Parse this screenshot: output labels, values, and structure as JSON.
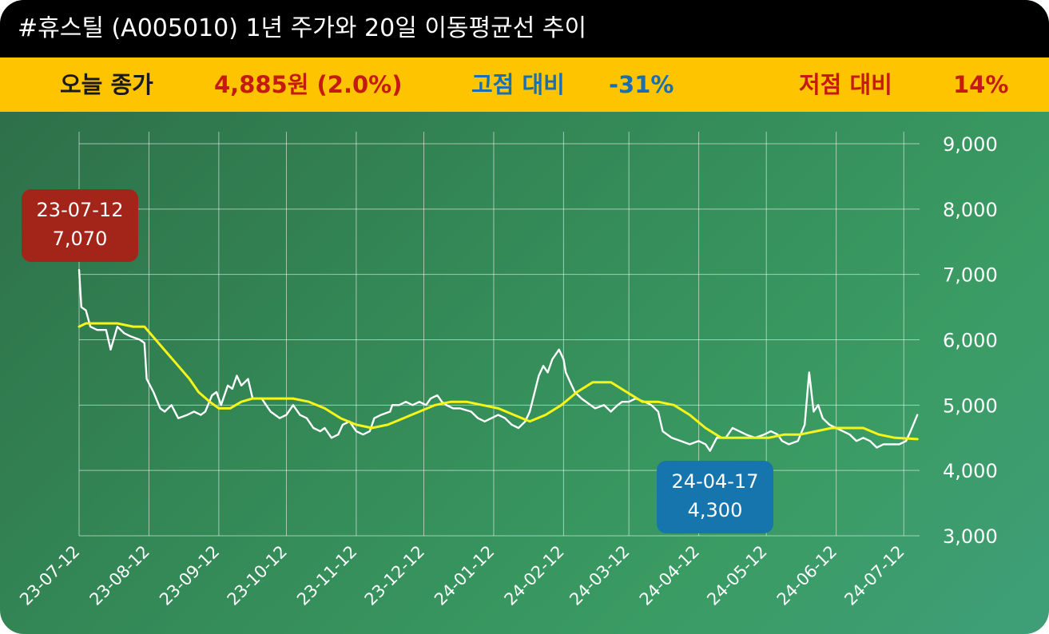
{
  "header": {
    "title": "#휴스틸 (A005010) 1년 주가와 20일 이동평균선 추이"
  },
  "stats": {
    "today_label": "오늘 종가",
    "today_value": "4,885원 (2.0%)",
    "high_label": "고점 대비",
    "high_value": "-31%",
    "low_label": "저점 대비",
    "low_value": "14%"
  },
  "callouts": {
    "high": {
      "date": "23-07-12",
      "value": "7,070"
    },
    "low": {
      "date": "24-04-17",
      "value": "4,300"
    }
  },
  "colors": {
    "title_bg": "#000000",
    "stat_bg": "#ffc400",
    "price_line": "#ffffff",
    "ma_line": "#f5f51a",
    "high_callout": "#a32418",
    "low_callout": "#1775ad"
  },
  "chart_data": {
    "type": "line",
    "title": "",
    "xlabel": "",
    "ylabel": "",
    "ylim": [
      3000,
      9000
    ],
    "y_ticks": [
      3000,
      4000,
      5000,
      6000,
      7000,
      8000,
      9000
    ],
    "y_tick_labels": [
      "3,000",
      "4,000",
      "5,000",
      "6,000",
      "7,000",
      "8,000",
      "9,000"
    ],
    "x_ticks": [
      "23-07-12",
      "23-08-12",
      "23-09-12",
      "23-10-12",
      "23-11-12",
      "23-12-12",
      "24-01-12",
      "24-02-12",
      "24-03-12",
      "24-04-12",
      "24-05-12",
      "24-06-12",
      "24-07-12"
    ],
    "grid": true,
    "x_start": "2023-07-12",
    "x_end": "2024-07-19",
    "series": [
      {
        "name": "",
        "role": "price",
        "points": [
          [
            "2023-07-12",
            7070
          ],
          [
            "2023-07-13",
            6500
          ],
          [
            "2023-07-15",
            6450
          ],
          [
            "2023-07-17",
            6200
          ],
          [
            "2023-07-20",
            6150
          ],
          [
            "2023-07-24",
            6150
          ],
          [
            "2023-07-26",
            5850
          ],
          [
            "2023-07-29",
            6200
          ],
          [
            "2023-08-01",
            6100
          ],
          [
            "2023-08-04",
            6050
          ],
          [
            "2023-08-08",
            6000
          ],
          [
            "2023-08-10",
            5950
          ],
          [
            "2023-08-11",
            5400
          ],
          [
            "2023-08-14",
            5200
          ],
          [
            "2023-08-17",
            4950
          ],
          [
            "2023-08-19",
            4900
          ],
          [
            "2023-08-22",
            5000
          ],
          [
            "2023-08-25",
            4800
          ],
          [
            "2023-08-29",
            4850
          ],
          [
            "2023-09-01",
            4900
          ],
          [
            "2023-09-04",
            4850
          ],
          [
            "2023-09-06",
            4900
          ],
          [
            "2023-09-09",
            5150
          ],
          [
            "2023-09-11",
            5200
          ],
          [
            "2023-09-13",
            5000
          ],
          [
            "2023-09-16",
            5300
          ],
          [
            "2023-09-18",
            5250
          ],
          [
            "2023-09-20",
            5450
          ],
          [
            "2023-09-22",
            5300
          ],
          [
            "2023-09-25",
            5400
          ],
          [
            "2023-09-27",
            5100
          ],
          [
            "2023-10-01",
            5100
          ],
          [
            "2023-10-05",
            4900
          ],
          [
            "2023-10-09",
            4800
          ],
          [
            "2023-10-12",
            4850
          ],
          [
            "2023-10-15",
            5000
          ],
          [
            "2023-10-18",
            4850
          ],
          [
            "2023-10-21",
            4800
          ],
          [
            "2023-10-24",
            4650
          ],
          [
            "2023-10-27",
            4600
          ],
          [
            "2023-10-29",
            4650
          ],
          [
            "2023-11-01",
            4500
          ],
          [
            "2023-11-04",
            4550
          ],
          [
            "2023-11-06",
            4700
          ],
          [
            "2023-11-09",
            4750
          ],
          [
            "2023-11-12",
            4600
          ],
          [
            "2023-11-15",
            4550
          ],
          [
            "2023-11-18",
            4600
          ],
          [
            "2023-11-20",
            4800
          ],
          [
            "2023-11-23",
            4850
          ],
          [
            "2023-11-27",
            4900
          ],
          [
            "2023-11-28",
            5000
          ],
          [
            "2023-12-01",
            5000
          ],
          [
            "2023-12-04",
            5050
          ],
          [
            "2023-12-07",
            5000
          ],
          [
            "2023-12-10",
            5050
          ],
          [
            "2023-12-13",
            5000
          ],
          [
            "2023-12-15",
            5100
          ],
          [
            "2023-12-18",
            5150
          ],
          [
            "2023-12-20",
            5050
          ],
          [
            "2023-12-22",
            5000
          ],
          [
            "2023-12-25",
            4950
          ],
          [
            "2023-12-28",
            4950
          ],
          [
            "2024-01-02",
            4900
          ],
          [
            "2024-01-05",
            4800
          ],
          [
            "2024-01-08",
            4750
          ],
          [
            "2024-01-11",
            4800
          ],
          [
            "2024-01-14",
            4850
          ],
          [
            "2024-01-17",
            4800
          ],
          [
            "2024-01-20",
            4700
          ],
          [
            "2024-01-23",
            4650
          ],
          [
            "2024-01-26",
            4750
          ],
          [
            "2024-01-28",
            4900
          ],
          [
            "2024-02-01",
            5450
          ],
          [
            "2024-02-03",
            5600
          ],
          [
            "2024-02-05",
            5500
          ],
          [
            "2024-02-07",
            5700
          ],
          [
            "2024-02-10",
            5850
          ],
          [
            "2024-02-12",
            5700
          ],
          [
            "2024-02-13",
            5500
          ],
          [
            "2024-02-15",
            5350
          ],
          [
            "2024-02-17",
            5200
          ],
          [
            "2024-02-20",
            5100
          ],
          [
            "2024-02-24",
            5000
          ],
          [
            "2024-02-26",
            4950
          ],
          [
            "2024-03-01",
            5000
          ],
          [
            "2024-03-04",
            4900
          ],
          [
            "2024-03-07",
            5000
          ],
          [
            "2024-03-09",
            5050
          ],
          [
            "2024-03-12",
            5050
          ],
          [
            "2024-03-15",
            5100
          ],
          [
            "2024-03-19",
            5050
          ],
          [
            "2024-03-22",
            5000
          ],
          [
            "2024-03-25",
            4900
          ],
          [
            "2024-03-27",
            4600
          ],
          [
            "2024-03-31",
            4500
          ],
          [
            "2024-04-04",
            4450
          ],
          [
            "2024-04-08",
            4400
          ],
          [
            "2024-04-12",
            4450
          ],
          [
            "2024-04-15",
            4400
          ],
          [
            "2024-04-17",
            4300
          ],
          [
            "2024-04-20",
            4500
          ],
          [
            "2024-04-24",
            4500
          ],
          [
            "2024-04-27",
            4650
          ],
          [
            "2024-04-30",
            4600
          ],
          [
            "2024-05-03",
            4550
          ],
          [
            "2024-05-07",
            4500
          ],
          [
            "2024-05-11",
            4550
          ],
          [
            "2024-05-14",
            4600
          ],
          [
            "2024-05-17",
            4550
          ],
          [
            "2024-05-19",
            4450
          ],
          [
            "2024-05-22",
            4400
          ],
          [
            "2024-05-26",
            4450
          ],
          [
            "2024-05-29",
            4700
          ],
          [
            "2024-05-31",
            5500
          ],
          [
            "2024-06-02",
            4900
          ],
          [
            "2024-06-04",
            5000
          ],
          [
            "2024-06-06",
            4800
          ],
          [
            "2024-06-09",
            4700
          ],
          [
            "2024-06-12",
            4650
          ],
          [
            "2024-06-15",
            4600
          ],
          [
            "2024-06-18",
            4550
          ],
          [
            "2024-06-21",
            4450
          ],
          [
            "2024-06-24",
            4500
          ],
          [
            "2024-06-27",
            4450
          ],
          [
            "2024-06-30",
            4350
          ],
          [
            "2024-07-03",
            4400
          ],
          [
            "2024-07-07",
            4400
          ],
          [
            "2024-07-10",
            4400
          ],
          [
            "2024-07-13",
            4450
          ],
          [
            "2024-07-15",
            4600
          ],
          [
            "2024-07-18",
            4850
          ]
        ]
      },
      {
        "name": "",
        "role": "ma20",
        "points": [
          [
            "2023-07-12",
            6200
          ],
          [
            "2023-07-15",
            6250
          ],
          [
            "2023-07-22",
            6250
          ],
          [
            "2023-07-29",
            6250
          ],
          [
            "2023-08-05",
            6200
          ],
          [
            "2023-08-10",
            6200
          ],
          [
            "2023-08-15",
            6000
          ],
          [
            "2023-08-20",
            5800
          ],
          [
            "2023-08-25",
            5600
          ],
          [
            "2023-08-30",
            5400
          ],
          [
            "2023-09-03",
            5200
          ],
          [
            "2023-09-08",
            5050
          ],
          [
            "2023-09-12",
            4950
          ],
          [
            "2023-09-17",
            4950
          ],
          [
            "2023-09-22",
            5050
          ],
          [
            "2023-09-27",
            5100
          ],
          [
            "2023-10-05",
            5100
          ],
          [
            "2023-10-15",
            5100
          ],
          [
            "2023-10-22",
            5050
          ],
          [
            "2023-10-29",
            4950
          ],
          [
            "2023-11-05",
            4800
          ],
          [
            "2023-11-12",
            4700
          ],
          [
            "2023-11-19",
            4650
          ],
          [
            "2023-11-26",
            4700
          ],
          [
            "2023-12-03",
            4800
          ],
          [
            "2023-12-10",
            4900
          ],
          [
            "2023-12-17",
            5000
          ],
          [
            "2023-12-24",
            5050
          ],
          [
            "2023-12-31",
            5050
          ],
          [
            "2024-01-07",
            5000
          ],
          [
            "2024-01-14",
            4950
          ],
          [
            "2024-01-21",
            4850
          ],
          [
            "2024-01-28",
            4750
          ],
          [
            "2024-02-04",
            4850
          ],
          [
            "2024-02-11",
            5000
          ],
          [
            "2024-02-18",
            5200
          ],
          [
            "2024-02-25",
            5350
          ],
          [
            "2024-03-04",
            5350
          ],
          [
            "2024-03-11",
            5200
          ],
          [
            "2024-03-18",
            5050
          ],
          [
            "2024-03-25",
            5050
          ],
          [
            "2024-04-01",
            5000
          ],
          [
            "2024-04-08",
            4850
          ],
          [
            "2024-04-15",
            4650
          ],
          [
            "2024-04-22",
            4500
          ],
          [
            "2024-04-29",
            4500
          ],
          [
            "2024-05-06",
            4500
          ],
          [
            "2024-05-13",
            4500
          ],
          [
            "2024-05-20",
            4550
          ],
          [
            "2024-05-27",
            4550
          ],
          [
            "2024-06-03",
            4600
          ],
          [
            "2024-06-10",
            4650
          ],
          [
            "2024-06-17",
            4650
          ],
          [
            "2024-06-24",
            4650
          ],
          [
            "2024-07-01",
            4550
          ],
          [
            "2024-07-08",
            4500
          ],
          [
            "2024-07-18",
            4480
          ]
        ]
      }
    ]
  }
}
